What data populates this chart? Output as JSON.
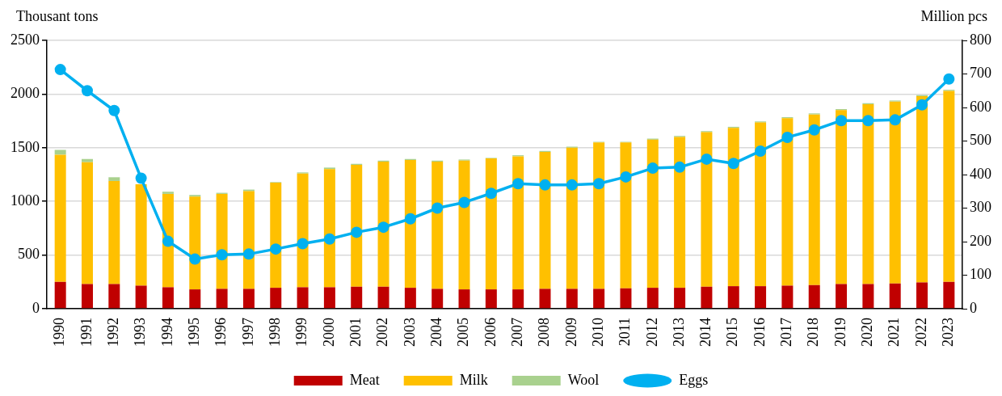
{
  "chart_data": {
    "type": "bar",
    "stacked": true,
    "ylabel": "Thousant tons",
    "y2label": "Million pcs",
    "categories": [
      "1990",
      "1991",
      "1992",
      "1993",
      "1994",
      "1995",
      "1996",
      "1997",
      "1998",
      "1999",
      "2000",
      "2001",
      "2002",
      "2003",
      "2004",
      "2005",
      "2006",
      "2007",
      "2008",
      "2009",
      "2010",
      "2011",
      "2012",
      "2013",
      "2014",
      "2015",
      "2016",
      "2017",
      "2018",
      "2019",
      "2020",
      "2021",
      "2022",
      "2023"
    ],
    "series": [
      {
        "name": "Meat",
        "color": "#c00000",
        "values": [
          250,
          230,
          230,
          215,
          200,
          180,
          185,
          185,
          195,
          200,
          200,
          205,
          205,
          195,
          185,
          180,
          180,
          180,
          185,
          185,
          185,
          190,
          195,
          195,
          205,
          210,
          210,
          215,
          220,
          230,
          230,
          235,
          245,
          250
        ]
      },
      {
        "name": "Milk",
        "color": "#ffc000",
        "values": [
          1185,
          1135,
          960,
          945,
          870,
          865,
          885,
          910,
          980,
          1060,
          1100,
          1135,
          1165,
          1190,
          1185,
          1200,
          1220,
          1240,
          1275,
          1315,
          1365,
          1360,
          1380,
          1405,
          1440,
          1475,
          1525,
          1560,
          1590,
          1620,
          1675,
          1695,
          1735,
          1780
        ]
      },
      {
        "name": "Wool",
        "color": "#a9d18e",
        "values": [
          45,
          30,
          35,
          null,
          20,
          15,
          10,
          15,
          5,
          10,
          15,
          10,
          10,
          10,
          10,
          10,
          5,
          10,
          10,
          10,
          5,
          5,
          10,
          10,
          10,
          10,
          10,
          10,
          10,
          10,
          10,
          10,
          10,
          10
        ]
      },
      {
        "name": "Eggs",
        "type": "line",
        "axis": "y2",
        "color": "#00b0f0",
        "marker": "circle",
        "values": [
          713,
          650,
          591,
          389,
          201,
          148,
          161,
          163,
          178,
          194,
          208,
          228,
          243,
          268,
          300,
          317,
          344,
          373,
          369,
          369,
          373,
          393,
          419,
          422,
          446,
          433,
          470,
          511,
          533,
          561,
          561,
          563,
          608,
          685
        ]
      }
    ],
    "ylim": [
      0,
      2500
    ],
    "yticks": [
      0,
      500,
      1000,
      1500,
      2000,
      2500
    ],
    "y2lim": [
      0,
      800
    ],
    "y2ticks": [
      0,
      100,
      200,
      300,
      400,
      500,
      600,
      700,
      800
    ],
    "grid": "y",
    "legend": "bottom"
  }
}
